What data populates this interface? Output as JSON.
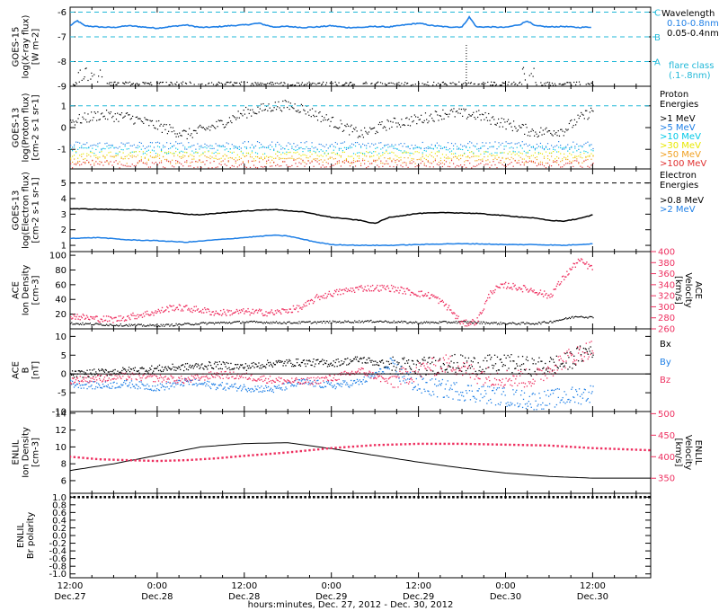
{
  "colors": {
    "black": "#000000",
    "blue": "#1e7fe6",
    "red": "#ee3060",
    "cyan": "#00c8e6",
    "green": "#30d030",
    "yellow": "#e8e800",
    "orange": "#f0a020",
    "darkred": "#e03030",
    "dashed_cyan": "#20b8d8"
  },
  "xaxis": {
    "title": "hours:minutes, Dec. 27, 2012 - Dec. 30, 2012",
    "range_hours": [
      0,
      80
    ],
    "ticks": [
      {
        "hour": 0,
        "time": "12:00",
        "date": "Dec.27"
      },
      {
        "hour": 12,
        "time": "0:00",
        "date": "Dec.28"
      },
      {
        "hour": 24,
        "time": "12:00",
        "date": "Dec.28"
      },
      {
        "hour": 36,
        "time": "0:00",
        "date": "Dec.29"
      },
      {
        "hour": 48,
        "time": "12:00",
        "date": "Dec.29"
      },
      {
        "hour": 60,
        "time": "0:00",
        "date": "Dec.30"
      },
      {
        "hour": 72,
        "time": "12:00",
        "date": "Dec.30"
      }
    ],
    "minor_step_hours": 3
  },
  "chart_data": [
    {
      "type": "line",
      "id": "xray",
      "ylabel": [
        "GOES-15",
        "log(X-ray flux)",
        "[W m-2]"
      ],
      "ylim": [
        -9,
        -5.8
      ],
      "yticks": [
        -9,
        -8,
        -7,
        -6
      ],
      "levels": [
        {
          "y": -6,
          "label": "C"
        },
        {
          "y": -7,
          "label": "B"
        },
        {
          "y": -8,
          "label": "A"
        }
      ],
      "legend": {
        "title": "Wavelength",
        "entries": [
          {
            "label": "0.10-0.8nm",
            "color": "blue"
          },
          {
            "label": "0.05-0.4nm",
            "color": "black"
          }
        ],
        "note": [
          "flare class",
          "(.1-.8nm)"
        ]
      },
      "series": [
        {
          "name": "0.10-0.8nm",
          "color": "blue",
          "x": [
            0,
            1,
            2,
            4,
            6,
            8,
            10,
            12,
            14,
            16,
            18,
            20,
            22,
            24,
            26,
            28,
            30,
            32,
            34,
            36,
            38,
            40,
            42,
            44,
            46,
            48,
            50,
            52,
            54,
            55,
            56,
            58,
            60,
            62,
            63,
            64,
            66,
            68,
            70,
            72
          ],
          "y": [
            -6.55,
            -6.35,
            -6.55,
            -6.6,
            -6.62,
            -6.55,
            -6.6,
            -6.65,
            -6.58,
            -6.52,
            -6.62,
            -6.6,
            -6.55,
            -6.52,
            -6.45,
            -6.6,
            -6.58,
            -6.62,
            -6.6,
            -6.55,
            -6.62,
            -6.62,
            -6.58,
            -6.6,
            -6.52,
            -6.45,
            -6.55,
            -6.6,
            -6.6,
            -6.2,
            -6.6,
            -6.6,
            -6.62,
            -6.5,
            -6.35,
            -6.55,
            -6.6,
            -6.58,
            -6.62,
            -6.6
          ]
        }
      ]
    },
    {
      "type": "scatter",
      "id": "proton",
      "ylabel": [
        "GOES-13",
        "log(Proton flux)",
        "[cm-2 s-1 sr-1]"
      ],
      "ylim": [
        -1.9,
        1.9
      ],
      "yticks": [
        -1,
        0,
        1
      ],
      "reference_line": 1,
      "legend": {
        "title": [
          "Proton",
          "Energies"
        ],
        "entries": [
          {
            "label": ">1 MeV",
            "color": "black"
          },
          {
            "label": ">5 MeV",
            "color": "blue"
          },
          {
            "label": ">10 MeV",
            "color": "cyan"
          },
          {
            "label": ">30 MeV",
            "color": "yellow"
          },
          {
            "label": ">50 MeV",
            "color": "orange"
          },
          {
            "label": ">100 MeV",
            "color": "darkred"
          }
        ]
      },
      "series": [
        {
          "name": ">1 MeV",
          "color": "black",
          "x": [
            0,
            4,
            8,
            12,
            16,
            20,
            24,
            28,
            30,
            32,
            36,
            40,
            44,
            48,
            52,
            56,
            60,
            64,
            68,
            70,
            72
          ],
          "y": [
            0.3,
            0.6,
            0.5,
            0.1,
            -0.3,
            0.1,
            0.7,
            1.0,
            1.05,
            0.9,
            0.3,
            -0.3,
            0.2,
            0.4,
            0.7,
            0.6,
            0.2,
            -0.2,
            -0.1,
            0.4,
            0.8
          ]
        },
        {
          "name": ">5 MeV",
          "color": "blue",
          "x": [
            0,
            72
          ],
          "y": [
            -0.8,
            -0.8
          ]
        },
        {
          "name": ">10 MeV",
          "color": "cyan",
          "x": [
            0,
            72
          ],
          "y": [
            -1.0,
            -1.0
          ]
        },
        {
          "name": ">30 MeV",
          "color": "yellow",
          "x": [
            0,
            72
          ],
          "y": [
            -1.25,
            -1.25
          ]
        },
        {
          "name": ">50 MeV",
          "color": "orange",
          "x": [
            0,
            72
          ],
          "y": [
            -1.45,
            -1.45
          ]
        },
        {
          "name": ">100 MeV",
          "color": "darkred",
          "x": [
            0,
            72
          ],
          "y": [
            -1.65,
            -1.65
          ]
        }
      ]
    },
    {
      "type": "line",
      "id": "electron",
      "ylabel": [
        "GOES-13",
        "log(Electron flux)",
        "[cm-2 s-1 sr-1]"
      ],
      "ylim": [
        0.6,
        5.9
      ],
      "yticks": [
        1,
        2,
        3,
        4,
        5
      ],
      "reference_line": 5,
      "legend": {
        "title": [
          "Electron",
          "Energies"
        ],
        "entries": [
          {
            "label": ">0.8 MeV",
            "color": "black"
          },
          {
            "label": ">2 MeV",
            "color": "blue"
          }
        ]
      },
      "series": [
        {
          "name": ">0.8 MeV",
          "color": "black",
          "x": [
            0,
            6,
            10,
            14,
            16,
            18,
            20,
            24,
            28,
            32,
            36,
            40,
            42,
            44,
            48,
            52,
            56,
            60,
            64,
            66,
            68,
            70,
            72
          ],
          "y": [
            3.35,
            3.3,
            3.25,
            3.1,
            3.0,
            2.95,
            3.05,
            3.2,
            3.3,
            3.15,
            2.8,
            2.6,
            2.4,
            2.8,
            3.05,
            3.1,
            3.05,
            2.9,
            2.75,
            2.6,
            2.55,
            2.7,
            2.95
          ]
        },
        {
          "name": ">2 MeV",
          "color": "blue",
          "x": [
            0,
            4,
            8,
            12,
            16,
            20,
            24,
            28,
            30,
            32,
            34,
            36,
            40,
            44,
            48,
            52,
            56,
            60,
            64,
            68,
            72
          ],
          "y": [
            1.45,
            1.5,
            1.35,
            1.3,
            1.2,
            1.35,
            1.5,
            1.65,
            1.6,
            1.4,
            1.2,
            1.05,
            1.0,
            1.0,
            1.05,
            1.1,
            1.1,
            1.05,
            1.05,
            1.0,
            1.1
          ]
        }
      ]
    },
    {
      "type": "scatter",
      "id": "ace_density_velocity",
      "ylabel": [
        "ACE",
        "Ion Density",
        "[cm-3]"
      ],
      "ylabel_right": [
        "ACE",
        "Velocity",
        "[km/s]"
      ],
      "ylim": [
        0,
        105
      ],
      "yticks": [
        20,
        40,
        60,
        80,
        100
      ],
      "ylim_right": [
        260,
        400
      ],
      "yticks_right": [
        260,
        280,
        300,
        320,
        340,
        360,
        380,
        400
      ],
      "series": [
        {
          "name": "Ion Density",
          "color": "black",
          "x": [
            0,
            6,
            12,
            18,
            24,
            30,
            36,
            42,
            48,
            54,
            60,
            64,
            66,
            68,
            70,
            72
          ],
          "y": [
            8,
            6,
            5,
            8,
            10,
            9,
            10,
            11,
            9,
            10,
            8,
            8,
            10,
            14,
            18,
            16
          ]
        },
        {
          "name": "Velocity",
          "color": "red",
          "axis": "right",
          "x": [
            0,
            3,
            6,
            9,
            12,
            14,
            16,
            18,
            20,
            24,
            28,
            32,
            34,
            36,
            40,
            44,
            46,
            48,
            50,
            52,
            54,
            56,
            58,
            60,
            62,
            64,
            66,
            68,
            70,
            72
          ],
          "y": [
            285,
            280,
            278,
            285,
            292,
            300,
            298,
            295,
            290,
            292,
            290,
            300,
            318,
            325,
            335,
            335,
            330,
            325,
            320,
            300,
            270,
            275,
            330,
            340,
            335,
            330,
            320,
            355,
            385,
            370
          ]
        }
      ]
    },
    {
      "type": "line",
      "id": "ace_mag",
      "ylabel": [
        "ACE",
        "B",
        "[nT]"
      ],
      "ylim": [
        -10,
        12
      ],
      "yticks": [
        -10,
        -5,
        0,
        5,
        10
      ],
      "zero_line": true,
      "legend": {
        "entries": [
          {
            "label": "Bx",
            "color": "black"
          },
          {
            "label": "By",
            "color": "blue"
          },
          {
            "label": "Bz",
            "color": "red"
          }
        ]
      },
      "series": [
        {
          "name": "Bx",
          "color": "black",
          "x": [
            0,
            4,
            8,
            12,
            16,
            20,
            24,
            28,
            32,
            36,
            40,
            44,
            48,
            52,
            56,
            60,
            64,
            68,
            72
          ],
          "y": [
            0,
            0.5,
            1,
            1.5,
            2,
            2.5,
            2,
            3,
            3.2,
            3,
            4,
            2.5,
            2,
            3,
            2.5,
            3,
            2,
            3,
            7
          ]
        },
        {
          "name": "By",
          "color": "blue",
          "x": [
            0,
            4,
            8,
            12,
            16,
            20,
            24,
            28,
            32,
            36,
            40,
            44,
            48,
            52,
            56,
            60,
            64,
            68,
            72
          ],
          "y": [
            -2.5,
            -3,
            -2.5,
            -3.5,
            -2,
            -3,
            -3.5,
            -4,
            -2,
            -3,
            -2,
            2,
            -3,
            -4,
            -5,
            -6,
            -7,
            -6,
            -5
          ]
        },
        {
          "name": "Bz",
          "color": "red",
          "x": [
            0,
            4,
            8,
            12,
            16,
            20,
            24,
            28,
            32,
            36,
            40,
            44,
            48,
            52,
            56,
            60,
            64,
            68,
            72
          ],
          "y": [
            -1.5,
            -1,
            -0.5,
            -1,
            -1.5,
            0,
            -0.5,
            -1.5,
            -2,
            -1,
            1,
            -2,
            1,
            3,
            0,
            -1,
            -1,
            4,
            7
          ]
        }
      ]
    },
    {
      "type": "line",
      "id": "enlil_density_velocity",
      "ylabel": [
        "ENLIL",
        "Ion Density",
        "[cm-3]"
      ],
      "ylabel_right": [
        "ENLIL",
        "Velocity",
        "[km/s]"
      ],
      "ylim": [
        4.5,
        14.2
      ],
      "yticks": [
        6,
        8,
        10,
        12,
        14
      ],
      "ylim_right": [
        315,
        505
      ],
      "yticks_right": [
        350,
        400,
        450,
        500
      ],
      "series": [
        {
          "name": "Ion Density",
          "color": "black",
          "x": [
            0,
            6,
            12,
            18,
            24,
            30,
            36,
            42,
            48,
            54,
            60,
            66,
            72,
            80
          ],
          "y": [
            7.2,
            8.0,
            9.0,
            10.0,
            10.4,
            10.5,
            9.8,
            9.0,
            8.2,
            7.5,
            6.9,
            6.5,
            6.3,
            6.3
          ]
        },
        {
          "name": "Velocity",
          "color": "red",
          "axis": "right",
          "x": [
            0,
            4,
            8,
            12,
            16,
            20,
            24,
            30,
            36,
            42,
            48,
            54,
            60,
            66,
            72,
            80
          ],
          "y": [
            400,
            394,
            392,
            390,
            392,
            396,
            402,
            410,
            420,
            427,
            430,
            430,
            428,
            426,
            420,
            415
          ]
        }
      ]
    },
    {
      "type": "line",
      "id": "enlil_polarity",
      "ylabel": [
        "ENLIL",
        "Br polarity"
      ],
      "ylim": [
        -1.1,
        1.1
      ],
      "yticks": [
        -1.0,
        -0.8,
        -0.6,
        -0.4,
        -0.2,
        0.0,
        0.2,
        0.4,
        0.6,
        0.8,
        1.0
      ],
      "series": [
        {
          "name": "Br polarity",
          "color": "black",
          "x": [
            0,
            80
          ],
          "y": [
            1.0,
            1.0
          ]
        }
      ]
    }
  ]
}
